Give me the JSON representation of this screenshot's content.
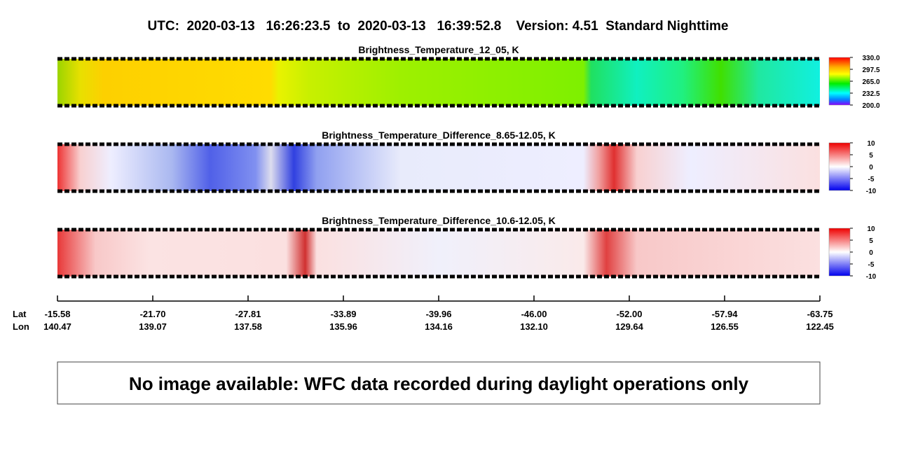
{
  "header": {
    "title": "UTC:  2020-03-13   16:26:23.5  to  2020-03-13   16:39:52.8    Version: 4.51  Standard Nighttime"
  },
  "panels": [
    {
      "title": "Brightness_Temperature_12_05, K",
      "colorbar": {
        "range": [
          200,
          330
        ],
        "ticks": [
          {
            "value": 330,
            "label": "330.0"
          },
          {
            "value": 297.5,
            "label": "297.5"
          },
          {
            "value": 265,
            "label": "265.0"
          },
          {
            "value": 232.5,
            "label": "232.5"
          },
          {
            "value": 200,
            "label": "200.0"
          }
        ]
      }
    },
    {
      "title": "Brightness_Temperature_Difference_8.65-12.05, K",
      "colorbar": {
        "range": [
          -10,
          10
        ],
        "ticks": [
          10,
          5,
          0,
          -5,
          -10
        ]
      }
    },
    {
      "title": "Brightness_Temperature_Difference_10.6-12.05, K",
      "colorbar": {
        "range": [
          -10,
          10
        ],
        "ticks": [
          10,
          5,
          0,
          -5,
          -10
        ]
      }
    }
  ],
  "axis": {
    "lat_label": "Lat",
    "lon_label": "Lon",
    "ticks": [
      {
        "lat": "-15.58",
        "lon": "140.47"
      },
      {
        "lat": "-21.70",
        "lon": "139.07"
      },
      {
        "lat": "-27.81",
        "lon": "137.58"
      },
      {
        "lat": "-33.89",
        "lon": "135.96"
      },
      {
        "lat": "-39.96",
        "lon": "134.16"
      },
      {
        "lat": "-46.00",
        "lon": "132.10"
      },
      {
        "lat": "-52.00",
        "lon": "129.64"
      },
      {
        "lat": "-57.94",
        "lon": "126.55"
      },
      {
        "lat": "-63.75",
        "lon": "122.45"
      }
    ]
  },
  "note": {
    "text": "No image available: WFC data recorded during daylight operations only"
  }
}
